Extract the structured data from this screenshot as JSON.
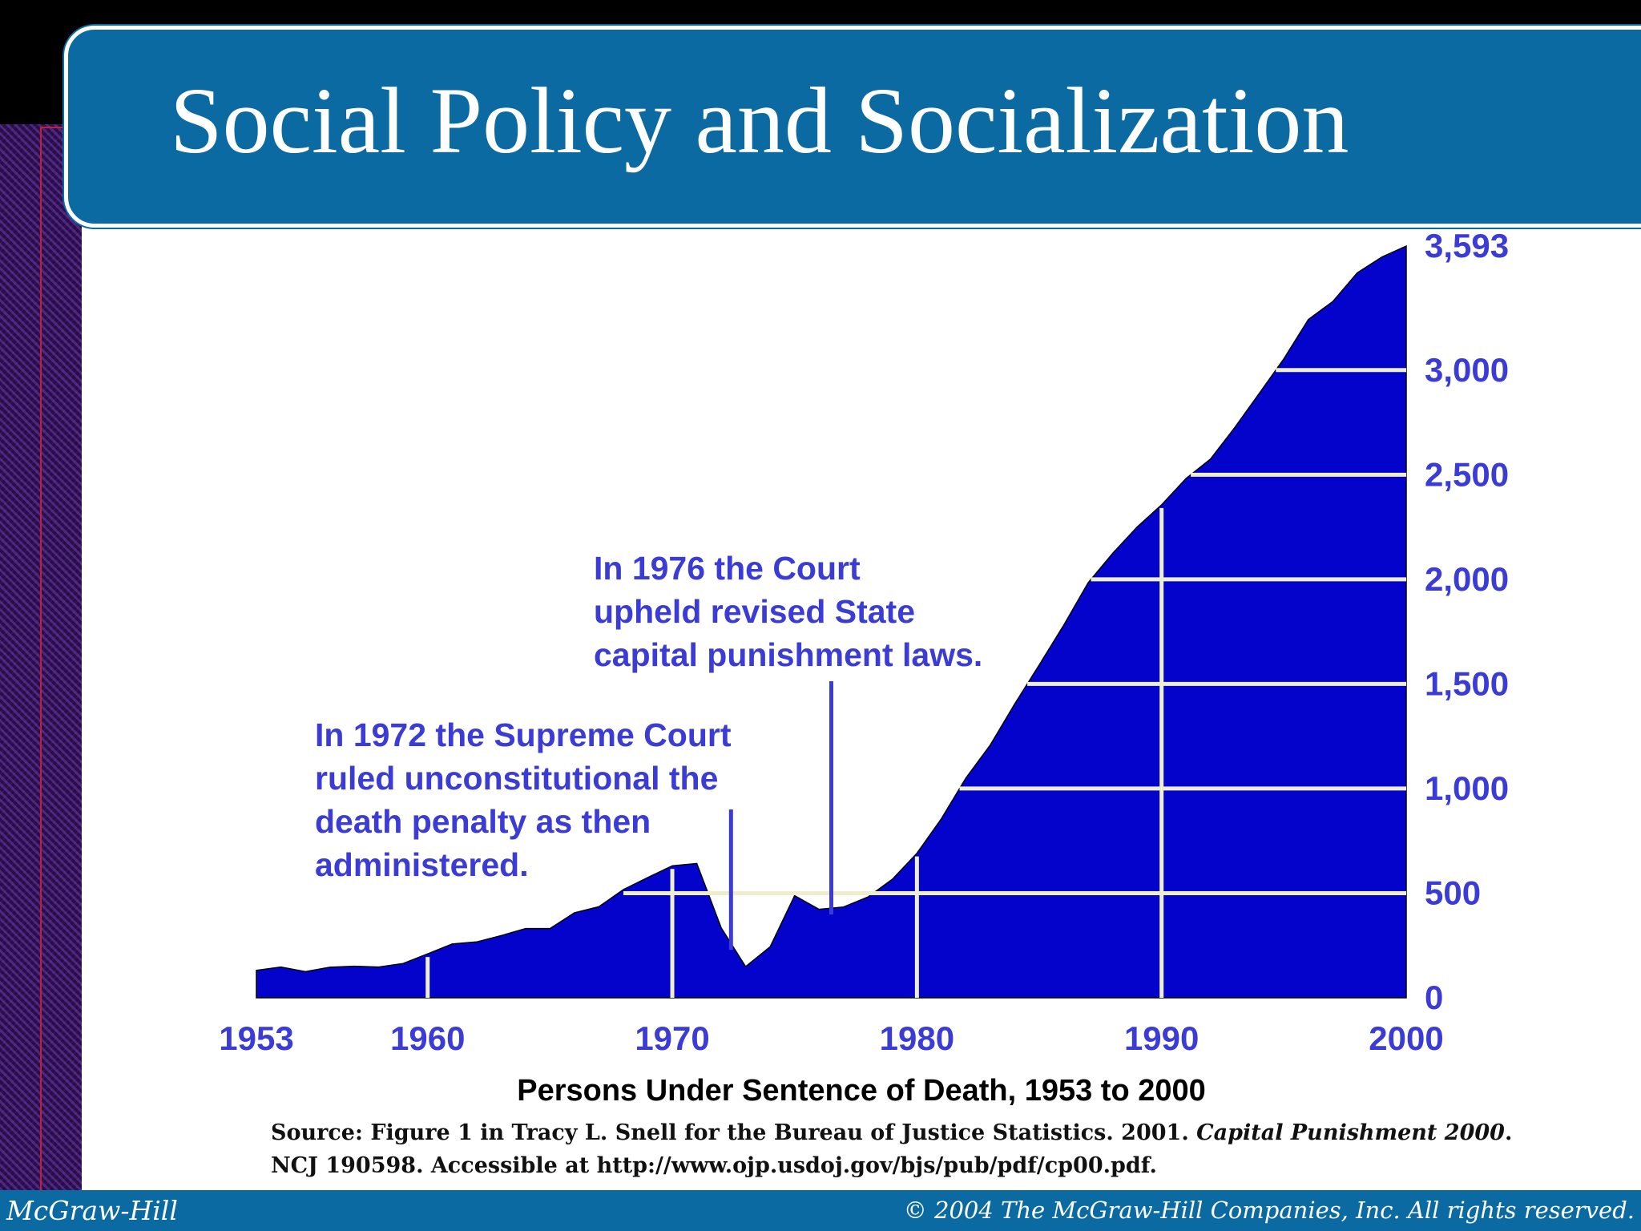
{
  "slide": {
    "title": "Social Policy and Socialization",
    "caption": "Persons Under Sentence of Death, 1953 to 2000",
    "source_line1_a": "Source: Figure 1 in Tracy L. Snell for the Bureau of Justice Statistics. 2001.",
    "source_line1_b": "Capital Punishment 2000",
    "source_line1_c": ".",
    "source_line2": "NCJ 190598. Accessible at http://www.ojp.usdoj.gov/bjs/pub/pdf/cp00.pdf.",
    "footer_left": "McGraw-Hill",
    "footer_right": "© 2004 The McGraw-Hill Companies, Inc. All rights reserved."
  },
  "annotations": {
    "a1972": [
      "In 1972 the Supreme Court",
      "ruled unconstitutional the",
      "death penalty as then",
      "administered."
    ],
    "a1976": [
      "In 1976 the Court",
      "upheld revised State",
      "capital punishment laws."
    ]
  },
  "chart_data": {
    "type": "area",
    "x": [
      1953,
      1954,
      1955,
      1956,
      1957,
      1958,
      1959,
      1960,
      1961,
      1962,
      1963,
      1964,
      1965,
      1966,
      1967,
      1968,
      1969,
      1970,
      1971,
      1972,
      1973,
      1974,
      1975,
      1976,
      1977,
      1978,
      1979,
      1980,
      1981,
      1982,
      1983,
      1984,
      1985,
      1986,
      1987,
      1988,
      1989,
      1990,
      1991,
      1992,
      1993,
      1994,
      1995,
      1996,
      1997,
      1998,
      1999,
      2000
    ],
    "values": [
      131,
      147,
      125,
      146,
      151,
      147,
      164,
      210,
      257,
      267,
      297,
      331,
      331,
      406,
      435,
      517,
      575,
      631,
      642,
      334,
      149,
      244,
      488,
      423,
      434,
      482,
      567,
      691,
      856,
      1050,
      1209,
      1405,
      1591,
      1781,
      1984,
      2124,
      2250,
      2356,
      2482,
      2575,
      2727,
      2890,
      3054,
      3242,
      3328,
      3465,
      3540,
      3593
    ],
    "color": "#0303cc",
    "gridline_color": "#eeeecc",
    "label_color": "#3b3bd6",
    "xlim": [
      1953,
      2000
    ],
    "ylim": [
      0,
      3593
    ],
    "x_tick_labels": [
      {
        "x": 1953,
        "label": "1953"
      },
      {
        "x": 1960,
        "label": "1960"
      },
      {
        "x": 1970,
        "label": "1970"
      },
      {
        "x": 1980,
        "label": "1980"
      },
      {
        "x": 1990,
        "label": "1990"
      },
      {
        "x": 2000,
        "label": "2000"
      }
    ],
    "y_tick_labels": [
      {
        "y": 0,
        "label": "0"
      },
      {
        "y": 500,
        "label": "500"
      },
      {
        "y": 1000,
        "label": "1,000"
      },
      {
        "y": 1500,
        "label": "1,500"
      },
      {
        "y": 2000,
        "label": "2,000"
      },
      {
        "y": 2500,
        "label": "2,500"
      },
      {
        "y": 3000,
        "label": "3,000"
      },
      {
        "y": 3593,
        "label": "3,593"
      }
    ],
    "grid_y": [
      500,
      1000,
      1500,
      2000,
      2500,
      3000
    ],
    "grid_x": [
      1960,
      1970,
      1980,
      1990
    ],
    "annotation_marks": [
      {
        "x": 1972.4,
        "y": 500
      },
      {
        "x": 1976.5,
        "y": 1500
      }
    ]
  }
}
